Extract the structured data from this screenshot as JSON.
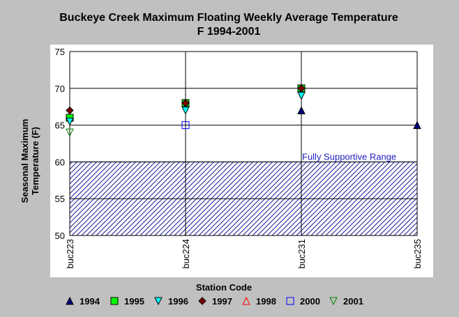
{
  "chart_data": {
    "type": "scatter",
    "title_line1": "Buckeye Creek Maximum Floating Weekly Average Temperature",
    "title_line2": "F 1994-2001",
    "ylabel_line1": "Seasonal Maximum",
    "ylabel_line2": "Temperature (F)",
    "xlabel": "Station Code",
    "categories": [
      "buc223",
      "buc224",
      "buc231",
      "buc235"
    ],
    "ylim": [
      50,
      75
    ],
    "yticks": [
      50,
      55,
      60,
      65,
      70,
      75
    ],
    "grid": true,
    "legend_position": "bottom",
    "shaded_range": {
      "label": "Fully Supportive Range",
      "ymin": 50,
      "ymax": 60,
      "color": "#1a1a9a"
    },
    "series": [
      {
        "name": "1994",
        "marker": "triangle-up",
        "filled": true,
        "color": "#000080",
        "values": [
          null,
          null,
          67,
          65
        ]
      },
      {
        "name": "1995",
        "marker": "square",
        "filled": true,
        "color": "#00ff00",
        "values": [
          66,
          68,
          70,
          null
        ]
      },
      {
        "name": "1996",
        "marker": "triangle-down",
        "filled": true,
        "color": "#00ffff",
        "values": [
          65.5,
          67,
          69,
          null
        ]
      },
      {
        "name": "1997",
        "marker": "diamond",
        "filled": true,
        "color": "#800000",
        "values": [
          67,
          68,
          70,
          null
        ]
      },
      {
        "name": "1998",
        "marker": "triangle-up",
        "filled": false,
        "color": "#ff0000",
        "values": [
          null,
          null,
          null,
          null
        ]
      },
      {
        "name": "2000",
        "marker": "square",
        "filled": false,
        "color": "#0000ff",
        "values": [
          null,
          65,
          null,
          null
        ]
      },
      {
        "name": "2001",
        "marker": "triangle-down",
        "filled": false,
        "color": "#008000",
        "values": [
          64,
          null,
          null,
          null
        ]
      }
    ]
  }
}
